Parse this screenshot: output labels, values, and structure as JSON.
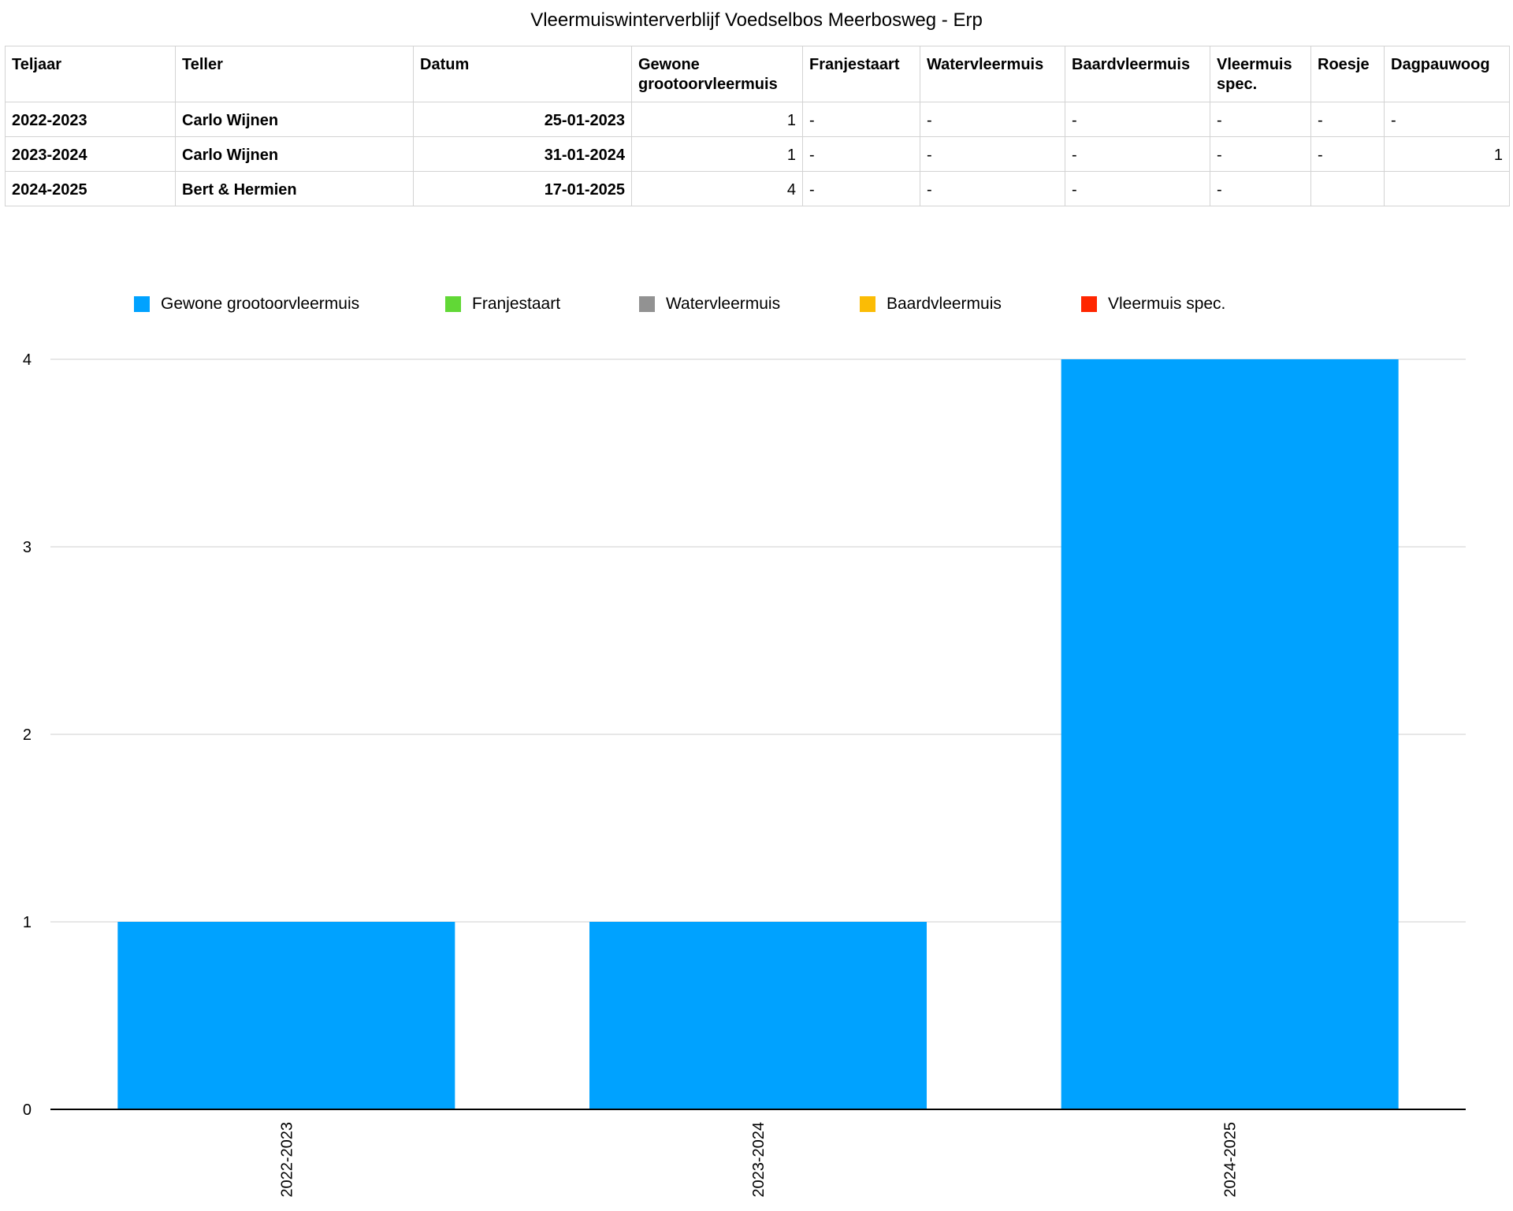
{
  "page_title": "Vleermuiswinterverblijf Voedselbos Meerbosweg - Erp",
  "table": {
    "headers": [
      "Teljaar",
      "Teller",
      "Datum",
      "Gewone grootoorvleermuis",
      "Franjestaart",
      "Watervleermuis",
      "Baardvleermuis",
      "Vleermuis spec.",
      "Roesje",
      "Dagpauwoog"
    ],
    "rows": [
      [
        "2022-2023",
        "Carlo Wijnen",
        "25-01-2023",
        "1",
        "-",
        "-",
        "-",
        "-",
        "-",
        "-"
      ],
      [
        "2023-2024",
        "Carlo Wijnen",
        "31-01-2024",
        "1",
        "-",
        "-",
        "-",
        "-",
        "-",
        "1"
      ],
      [
        "2024-2025",
        "Bert & Hermien",
        "17-01-2025",
        "4",
        "-",
        "-",
        "-",
        "-",
        "",
        ""
      ]
    ]
  },
  "chart_data": {
    "type": "bar",
    "title": "",
    "xlabel": "",
    "ylabel": "",
    "categories": [
      "2022-2023",
      "2023-2024",
      "2024-2025"
    ],
    "ylim": [
      0,
      4
    ],
    "yticks": [
      "0",
      "1",
      "2",
      "3",
      "4"
    ],
    "grid": true,
    "legend_position": "top",
    "series": [
      {
        "name": "Gewone grootoorvleermuis",
        "color": "#00a2ff",
        "values": [
          1,
          1,
          4
        ]
      },
      {
        "name": "Franjestaart",
        "color": "#61d836",
        "values": [
          0,
          0,
          0
        ]
      },
      {
        "name": "Watervleermuis",
        "color": "#929292",
        "values": [
          0,
          0,
          0
        ]
      },
      {
        "name": "Baardvleermuis",
        "color": "#fbbc05",
        "values": [
          0,
          0,
          0
        ]
      },
      {
        "name": "Vleermuis spec.",
        "color": "#ff2600",
        "values": [
          0,
          0,
          0
        ]
      }
    ]
  }
}
